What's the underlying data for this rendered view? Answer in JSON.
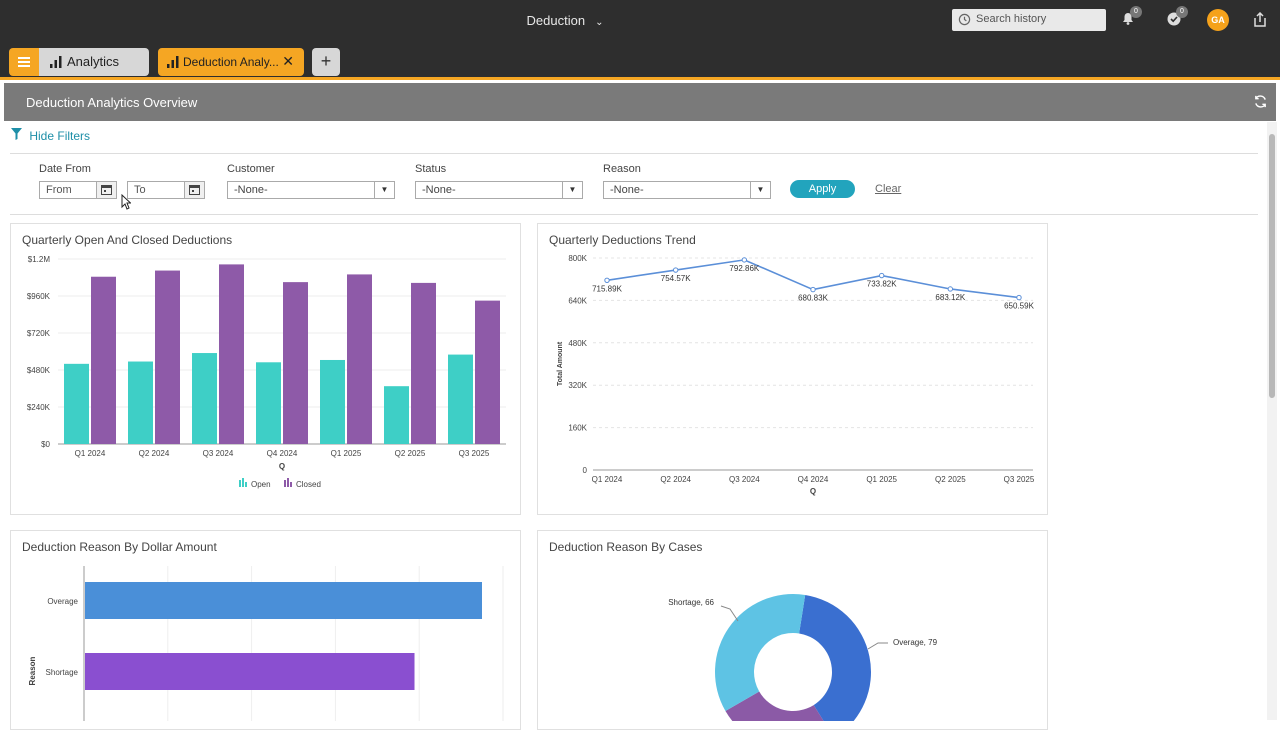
{
  "topbar": {
    "title": "Deduction",
    "search_placeholder": "Search history",
    "notifications_count": "0",
    "tasks_count": "0",
    "avatar_initials": "GA"
  },
  "tabs": {
    "analytics_label": "Analytics",
    "active_label": "Deduction Analy...",
    "add_label": "+"
  },
  "panel": {
    "title": "Deduction Analytics Overview"
  },
  "filters": {
    "toggle_label": "Hide Filters",
    "date_label": "Date From",
    "from_placeholder": "From",
    "to_placeholder": "To",
    "customer_label": "Customer",
    "customer_value": "-None-",
    "status_label": "Status",
    "status_value": "-None-",
    "reason_label": "Reason",
    "reason_value": "-None-",
    "apply_label": "Apply",
    "clear_label": "Clear"
  },
  "cards": {
    "open_closed_title": "Quarterly Open And Closed Deductions",
    "trend_title": "Quarterly Deductions Trend",
    "reason_amount_title": "Deduction Reason By Dollar Amount",
    "reason_cases_title": "Deduction Reason By Cases"
  },
  "colors": {
    "open": "#3ecfc6",
    "closed": "#8e5aa8",
    "line": "#5b8fd8",
    "accent": "#f5a623",
    "overage_bar": "#4a8fd8",
    "shortage_bar": "#8a4fd0"
  },
  "chart_data": [
    {
      "type": "bar",
      "title": "Quarterly Open And Closed Deductions",
      "categories": [
        "Q1 2024",
        "Q2 2024",
        "Q3 2024",
        "Q4 2024",
        "Q1 2025",
        "Q2 2025",
        "Q3 2025"
      ],
      "series": [
        {
          "name": "Open",
          "values": [
            520000,
            535000,
            590000,
            530000,
            545000,
            375000,
            580000
          ]
        },
        {
          "name": "Closed",
          "values": [
            1085000,
            1125000,
            1165000,
            1050000,
            1100000,
            1045000,
            930000
          ]
        }
      ],
      "xlabel": "Q",
      "ylim": [
        0,
        1200000
      ],
      "yticks": [
        "$0",
        "$240K",
        "$480K",
        "$720K",
        "$960K",
        "$1.2M"
      ],
      "legend": "bottom"
    },
    {
      "type": "line",
      "title": "Quarterly Deductions Trend",
      "categories": [
        "Q1 2024",
        "Q2 2024",
        "Q3 2024",
        "Q4 2024",
        "Q1 2025",
        "Q2 2025",
        "Q3 2025"
      ],
      "values": [
        715890,
        754570,
        792860,
        680830,
        733820,
        683120,
        650590
      ],
      "labels": [
        "715.89K",
        "754.57K",
        "792.86K",
        "680.83K",
        "733.82K",
        "683.12K",
        "650.59K"
      ],
      "xlabel": "Q",
      "ylabel": "Total Amount",
      "ylim": [
        0,
        800000
      ],
      "yticks": [
        "0",
        "160K",
        "320K",
        "480K",
        "640K",
        "800K"
      ]
    },
    {
      "type": "bar",
      "orientation": "horizontal",
      "title": "Deduction Reason By Dollar Amount",
      "categories": [
        "Overage",
        "Shortage"
      ],
      "values": [
        1,
        0.83
      ],
      "ylabel": "Reason"
    },
    {
      "type": "pie",
      "title": "Deduction Reason By Cases",
      "labels": [
        "Overage, 79",
        "Shortage, 66"
      ],
      "values": [
        79,
        66
      ]
    }
  ]
}
